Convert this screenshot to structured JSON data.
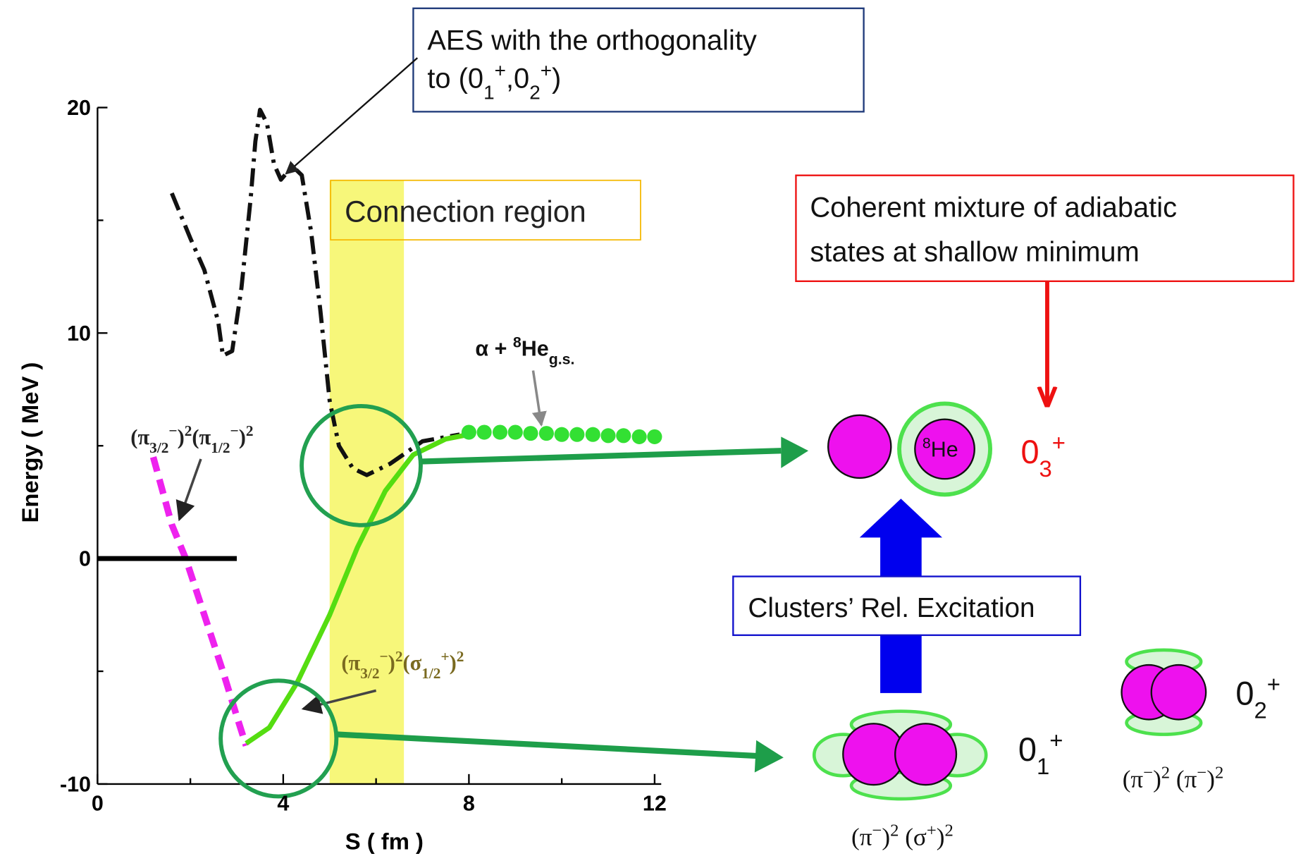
{
  "chart_data": {
    "type": "line",
    "x_label": "S ( fm )",
    "y_label": "Energy ( MeV )",
    "xlim": [
      0,
      12
    ],
    "ylim": [
      -10,
      20
    ],
    "xticks": [
      0,
      4,
      8,
      12
    ],
    "yticks": [
      -10,
      0,
      10,
      20
    ],
    "xminor_ticks": [
      2,
      6,
      10
    ],
    "yminor_ticks": [
      -5,
      5,
      15
    ],
    "band": {
      "xrange": [
        5.0,
        6.6
      ],
      "color": "#f7f77a",
      "label": [
        "Con",
        "nection region"
      ]
    },
    "series": [
      {
        "style": "dash-dot",
        "color": "#111111",
        "x": [
          1.6,
          2.0,
          2.3,
          2.6,
          2.7,
          2.9,
          3.1,
          3.3,
          3.4,
          3.5,
          3.65,
          3.8,
          3.95,
          4.2,
          4.4,
          4.6,
          4.8,
          5.0,
          5.2,
          5.5,
          5.8,
          6.3,
          7.0,
          7.8
        ],
        "values": [
          16.2,
          14.2,
          12.8,
          10.5,
          9.0,
          9.2,
          12.0,
          16.0,
          18.5,
          19.9,
          19.3,
          17.5,
          16.8,
          17.4,
          17.0,
          14.5,
          11.0,
          7.0,
          5.0,
          4.0,
          3.7,
          4.2,
          5.2,
          5.5
        ]
      },
      {
        "style": "dashed",
        "color": "#ee22ee",
        "x": [
          1.2,
          1.6,
          1.9,
          2.3,
          2.7,
          3.0,
          3.2
        ],
        "values": [
          4.5,
          1.5,
          0.0,
          -2.5,
          -5.0,
          -7.0,
          -8.3
        ]
      },
      {
        "style": "solid",
        "color": "#55dd11",
        "x": [
          3.2,
          3.7,
          4.3,
          5.0,
          5.6,
          6.2,
          6.8,
          7.5,
          8.0
        ],
        "values": [
          -8.2,
          -7.5,
          -5.5,
          -2.5,
          0.5,
          3.0,
          4.6,
          5.3,
          5.5
        ]
      },
      {
        "style": "dots",
        "color": "#33e033",
        "x": [
          8.0,
          8.33,
          8.67,
          9.0,
          9.33,
          9.67,
          10.0,
          10.33,
          10.67,
          11.0,
          11.33,
          11.67,
          12.0
        ],
        "values": [
          5.6,
          5.6,
          5.6,
          5.6,
          5.55,
          5.55,
          5.5,
          5.5,
          5.5,
          5.45,
          5.45,
          5.4,
          5.4
        ]
      },
      {
        "style": "solid",
        "color": "#000000",
        "x": [
          0,
          3.0
        ],
        "values": [
          0,
          0
        ]
      }
    ],
    "annotations": {
      "aes": [
        [
          "AES with the orthogonality"
        ],
        [
          "to (0",
          {
            "sub": "1"
          },
          {
            "sup": "+"
          },
          ",0",
          {
            "sub": "2"
          },
          {
            "sup": "+"
          },
          ")"
        ]
      ],
      "coherent": [
        [
          "Coherent mixture of adiabatic"
        ],
        [
          "states at shallow minimum"
        ]
      ],
      "alpha_he": [
        "α  + ",
        {
          "sup": "8"
        },
        "He",
        {
          "sub": "g.s."
        }
      ],
      "pi_pi": [
        "(π",
        {
          "sub": "3/2"
        },
        {
          "sup": "−"
        },
        ")",
        {
          "sup": "2"
        },
        "(π",
        {
          "sub": "1/2"
        },
        {
          "sup": "−"
        },
        ")",
        {
          "sup": "2"
        }
      ],
      "pi_sigma": [
        "(π",
        {
          "sub": "3/2"
        },
        {
          "sup": "−"
        },
        ")",
        {
          "sup": "2"
        },
        "(σ",
        {
          "sub": "1/2"
        },
        {
          "sup": "+"
        },
        ")",
        {
          "sup": "2"
        }
      ],
      "excitation": [
        "Clusters’ Rel. Excitation"
      ],
      "he8": [
        {
          "sup": "8"
        },
        "He"
      ],
      "state3": [
        "0",
        {
          "sub": "3"
        },
        {
          "sup": "+"
        }
      ],
      "state1": [
        "0",
        {
          "sub": "1"
        },
        {
          "sup": "+"
        }
      ],
      "state2": [
        "0",
        {
          "sub": "2"
        },
        {
          "sup": "+"
        }
      ],
      "config1": [
        "(π",
        {
          "sup": "−"
        },
        ")",
        {
          "sup": "2"
        },
        " (σ",
        {
          "sup": "+"
        },
        ")",
        {
          "sup": "2"
        }
      ],
      "config2": [
        "(π",
        {
          "sup": "−"
        },
        ")",
        {
          "sup": "2"
        },
        " (π",
        {
          "sup": "−"
        },
        ")",
        {
          "sup": "2"
        }
      ]
    }
  }
}
